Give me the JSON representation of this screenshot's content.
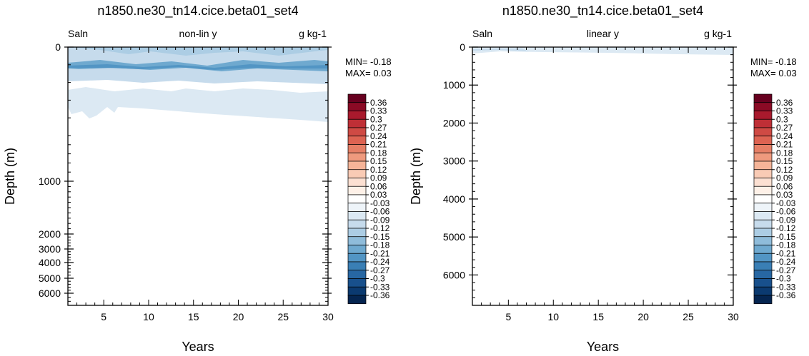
{
  "chart_data": [
    {
      "type": "heatmap",
      "title": "n1850.ne30_tn14.cice.beta01_set4",
      "variable_label": "Saln",
      "scale_label": "non-lin y",
      "units_label": "g kg-1",
      "xlabel": "Years",
      "ylabel": "Depth (m)",
      "xlim": [
        1,
        30
      ],
      "ylim": [
        0,
        6600
      ],
      "x_ticks": [
        "5",
        "10",
        "15",
        "20",
        "25",
        "30"
      ],
      "y_ticks": [
        "0",
        "1000",
        "2000",
        "3000",
        "4000",
        "5000",
        "6000"
      ],
      "y_scale": "nonlinear",
      "min_text": "MIN= -0.18",
      "max_text": "MAX=  0.03"
    },
    {
      "type": "heatmap",
      "title": "n1850.ne30_tn14.cice.beta01_set4",
      "variable_label": "Saln",
      "scale_label": "linear y",
      "units_label": "g kg-1",
      "xlabel": "Years",
      "ylabel": "Depth (m)",
      "xlim": [
        1,
        30
      ],
      "ylim": [
        0,
        6800
      ],
      "x_ticks": [
        "5",
        "10",
        "15",
        "20",
        "25",
        "30"
      ],
      "y_ticks": [
        "0",
        "1000",
        "2000",
        "3000",
        "4000",
        "5000",
        "6000"
      ],
      "y_scale": "linear",
      "min_text": "MIN= -0.18",
      "max_text": "MAX=  0.03"
    }
  ],
  "colorbar": {
    "labels": [
      "0.36",
      "0.33",
      "0.3",
      "0.27",
      "0.24",
      "0.21",
      "0.18",
      "0.15",
      "0.12",
      "0.09",
      "0.06",
      "0.03",
      "-0.03",
      "-0.06",
      "-0.09",
      "-0.12",
      "-0.15",
      "-0.18",
      "-0.21",
      "-0.24",
      "-0.27",
      "-0.3",
      "-0.33",
      "-0.36"
    ],
    "colors": [
      "#67001f",
      "#8b0a25",
      "#a91a2d",
      "#bf2f36",
      "#cf4a44",
      "#dd6352",
      "#e67f66",
      "#ef9a7e",
      "#f5b498",
      "#f9cbb5",
      "#fce0d2",
      "#fef1e8",
      "#ffffff",
      "#eef4f9",
      "#dce9f3",
      "#c6dbec",
      "#accde4",
      "#8fbcda",
      "#6fa9cf",
      "#5295c4",
      "#3a7fb5",
      "#2767a3",
      "#18508c",
      "#0b3a70",
      "#052550"
    ]
  }
}
